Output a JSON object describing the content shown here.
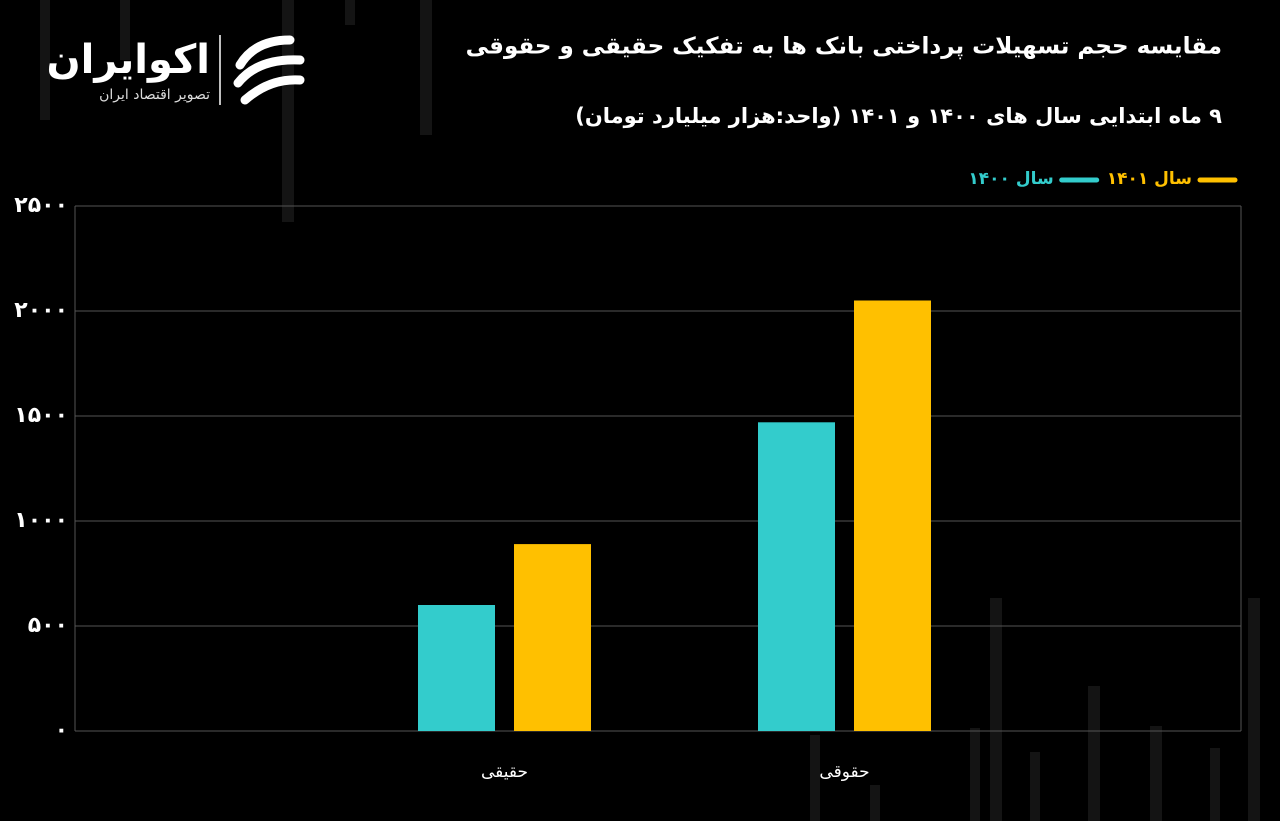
{
  "logo": {
    "name": "اکوایران",
    "tagline": "تصویر اقتصاد ایران"
  },
  "chart_data": {
    "type": "bar",
    "title": "مقایسه حجم تسهیلات پرداختی بانک ها به تفکیک حقیقی و حقوقی",
    "subtitle": "۹ ماه ابتدایی سال های ۱۴۰۰ و ۱۴۰۱ (واحد:هزار میلیارد تومان)",
    "categories": [
      "حقیقی",
      "حقوقی"
    ],
    "series": [
      {
        "name": "سال ۱۴۰۰",
        "color": "#33cccc",
        "values": [
          600,
          1470
        ]
      },
      {
        "name": "سال ۱۴۰۱",
        "color": "#ffc000",
        "values": [
          890,
          2050
        ]
      }
    ],
    "ylim": [
      0,
      2500
    ],
    "yticks": [
      {
        "value": 0,
        "label": "۰"
      },
      {
        "value": 500,
        "label": "۵۰۰"
      },
      {
        "value": 1000,
        "label": "۱۰۰۰"
      },
      {
        "value": 1500,
        "label": "۱۵۰۰"
      },
      {
        "value": 2000,
        "label": "۲۰۰۰"
      },
      {
        "value": 2500,
        "label": "۲۵۰۰"
      }
    ],
    "grid": true,
    "legend": "top-right"
  }
}
